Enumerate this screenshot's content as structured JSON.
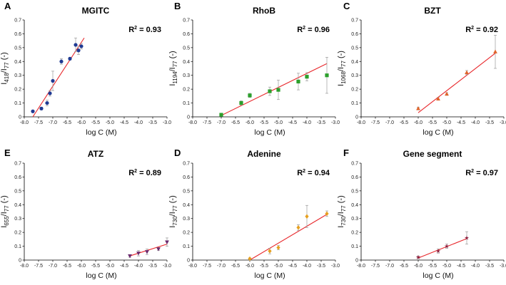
{
  "chart_data": [
    {
      "type": "scatter",
      "panel": "A",
      "title": "MGITC",
      "r2_label": "R",
      "r2_value": " = 0.93",
      "ylabel_main": "I",
      "ylabel_sub1": "418",
      "ylabel_mid": "/I",
      "ylabel_sub2": "77",
      "ylabel_end": " (-)",
      "xlabel": "log C (M)",
      "xlim": [
        -8.0,
        -3.0
      ],
      "ylim": [
        0,
        0.7
      ],
      "xticks": [
        -8.0,
        -7.5,
        -7.0,
        -6.5,
        -6.0,
        -5.5,
        -5.0,
        -4.5,
        -4.0,
        -3.5,
        -3.0
      ],
      "xtick_labels": [
        "-8.0",
        "-7.5",
        "-7.0",
        "-6.5",
        "-6.0",
        "-5.5",
        "-5.0",
        "-4.5",
        "-4.0",
        "-3.5",
        "-3.0"
      ],
      "yticks": [
        0,
        0.1,
        0.2,
        0.3,
        0.4,
        0.5,
        0.6,
        0.7
      ],
      "ytick_labels": [
        "0",
        "0.1",
        "0.2",
        "0.3",
        "0.4",
        "0.5",
        "0.6",
        "0.7"
      ],
      "marker": "circle",
      "color": "#1f3a93",
      "points": [
        {
          "x": -7.7,
          "y": 0.04,
          "err": 0.0
        },
        {
          "x": -7.4,
          "y": 0.06,
          "err": 0.01
        },
        {
          "x": -7.2,
          "y": 0.1,
          "err": 0.02
        },
        {
          "x": -7.1,
          "y": 0.17,
          "err": 0.02
        },
        {
          "x": -7.0,
          "y": 0.26,
          "err": 0.07
        },
        {
          "x": -6.7,
          "y": 0.4,
          "err": 0.02
        },
        {
          "x": -6.4,
          "y": 0.42,
          "err": 0.01
        },
        {
          "x": -6.2,
          "y": 0.52,
          "err": 0.05
        },
        {
          "x": -6.1,
          "y": 0.48,
          "err": 0.03
        },
        {
          "x": -6.0,
          "y": 0.51,
          "err": 0.02
        }
      ],
      "fit": [
        [
          -7.7,
          0.0
        ],
        [
          -5.9,
          0.57
        ]
      ]
    },
    {
      "type": "scatter",
      "panel": "B",
      "title": "RhoB",
      "r2_label": "R",
      "r2_value": " = 0.96",
      "ylabel_main": "I",
      "ylabel_sub1": "1194",
      "ylabel_mid": "/I",
      "ylabel_sub2": "77",
      "ylabel_end": " (-)",
      "xlabel": "log C (M)",
      "xlim": [
        -8.0,
        -3.0
      ],
      "ylim": [
        0,
        0.7
      ],
      "xticks": [
        -8.0,
        -7.5,
        -7.0,
        -6.5,
        -6.0,
        -5.5,
        -5.0,
        -4.5,
        -4.0,
        -3.5,
        -3.0
      ],
      "xtick_labels": [
        "-8.0",
        "-7.5",
        "-7.0",
        "-6.5",
        "-6.0",
        "-5.5",
        "-5.0",
        "-4.5",
        "-4.0",
        "-3.5",
        "-3.0"
      ],
      "yticks": [
        0,
        0.1,
        0.2,
        0.3,
        0.4,
        0.5,
        0.6,
        0.7
      ],
      "ytick_labels": [
        "0",
        "0.1",
        "0.2",
        "0.3",
        "0.4",
        "0.5",
        "0.6",
        "0.7"
      ],
      "marker": "square",
      "color": "#2ca02c",
      "points": [
        {
          "x": -7.0,
          "y": 0.015,
          "err": 0.01
        },
        {
          "x": -6.3,
          "y": 0.1,
          "err": 0.015
        },
        {
          "x": -6.0,
          "y": 0.155,
          "err": 0.015
        },
        {
          "x": -5.3,
          "y": 0.185,
          "err": 0.03
        },
        {
          "x": -5.0,
          "y": 0.195,
          "err": 0.07
        },
        {
          "x": -4.3,
          "y": 0.255,
          "err": 0.06
        },
        {
          "x": -4.0,
          "y": 0.29,
          "err": 0.03
        },
        {
          "x": -3.3,
          "y": 0.3,
          "err": 0.13
        }
      ],
      "fit": [
        [
          -7.0,
          0.01
        ],
        [
          -3.3,
          0.385
        ]
      ]
    },
    {
      "type": "scatter",
      "panel": "C",
      "title": "BZT",
      "r2_label": "R",
      "r2_value": " = 0.92",
      "ylabel_main": "I",
      "ylabel_sub1": "1068",
      "ylabel_mid": "/I",
      "ylabel_sub2": "77",
      "ylabel_end": " (-)",
      "xlabel": "log C (M)",
      "xlim": [
        -8.0,
        -3.0
      ],
      "ylim": [
        0,
        0.7
      ],
      "xticks": [
        -8.0,
        -7.5,
        -7.0,
        -6.5,
        -6.0,
        -5.5,
        -5.0,
        -4.5,
        -4.0,
        -3.5,
        -3.0
      ],
      "xtick_labels": [
        "-8.0",
        "-7.5",
        "-7.0",
        "-6.5",
        "-6.0",
        "-5.5",
        "-5.0",
        "-4.5",
        "-4.0",
        "-3.5",
        "-3.0"
      ],
      "yticks": [
        0,
        0.1,
        0.2,
        0.3,
        0.4,
        0.5,
        0.6,
        0.7
      ],
      "ytick_labels": [
        "0",
        "0.1",
        "0.2",
        "0.3",
        "0.4",
        "0.5",
        "0.6",
        "0.7"
      ],
      "marker": "triangle",
      "color": "#e0642a",
      "points": [
        {
          "x": -6.0,
          "y": 0.06,
          "err": 0.01
        },
        {
          "x": -5.3,
          "y": 0.13,
          "err": 0.01
        },
        {
          "x": -5.0,
          "y": 0.165,
          "err": 0.01
        },
        {
          "x": -4.3,
          "y": 0.32,
          "err": 0.015
        },
        {
          "x": -3.3,
          "y": 0.47,
          "err": 0.12
        }
      ],
      "fit": [
        [
          -6.0,
          0.03
        ],
        [
          -3.3,
          0.46
        ]
      ]
    },
    {
      "type": "scatter",
      "panel": "E",
      "title": "ATZ",
      "r2_label": "R",
      "r2_value": " = 0.89",
      "ylabel_main": "I",
      "ylabel_sub1": "655",
      "ylabel_mid": "/I",
      "ylabel_sub2": "77",
      "ylabel_end": " (-)",
      "xlabel": "log C (M)",
      "xlim": [
        -8.0,
        -3.0
      ],
      "ylim": [
        0,
        0.7
      ],
      "xticks": [
        -8.0,
        -7.5,
        -7.0,
        -6.5,
        -6.0,
        -5.5,
        -5.0,
        -4.5,
        -4.0,
        -3.5,
        -3.0
      ],
      "xtick_labels": [
        "-8.0",
        "-7.5",
        "-7.0",
        "-6.5",
        "-6.0",
        "-5.5",
        "-5.0",
        "-4.5",
        "-4.0",
        "-3.5",
        "-3.0"
      ],
      "yticks": [
        0,
        0.1,
        0.2,
        0.3,
        0.4,
        0.5,
        0.6,
        0.7
      ],
      "ytick_labels": [
        "0",
        "0.1",
        "0.2",
        "0.3",
        "0.4",
        "0.5",
        "0.6",
        "0.7"
      ],
      "marker": "triangle-down",
      "color": "#6b2a6e",
      "points": [
        {
          "x": -4.3,
          "y": 0.03,
          "err": 0.01
        },
        {
          "x": -4.0,
          "y": 0.05,
          "err": 0.02
        },
        {
          "x": -3.7,
          "y": 0.06,
          "err": 0.02
        },
        {
          "x": -3.3,
          "y": 0.08,
          "err": 0.01
        },
        {
          "x": -3.0,
          "y": 0.13,
          "err": 0.03
        }
      ],
      "fit": [
        [
          -4.3,
          0.03
        ],
        [
          -3.0,
          0.115
        ]
      ]
    },
    {
      "type": "scatter",
      "panel": "D",
      "title": "Adenine",
      "r2_label": "R",
      "r2_value": " = 0.94",
      "ylabel_main": "I",
      "ylabel_sub1": "730",
      "ylabel_mid": "/I",
      "ylabel_sub2": "77",
      "ylabel_end": " (-)",
      "xlabel": "log C (M)",
      "xlim": [
        -8.0,
        -3.0
      ],
      "ylim": [
        0,
        0.7
      ],
      "xticks": [
        -8.0,
        -7.5,
        -7.0,
        -6.5,
        -6.0,
        -5.5,
        -5.0,
        -4.5,
        -4.0,
        -3.5,
        -3.0
      ],
      "xtick_labels": [
        "-8.0",
        "-7.5",
        "-7.0",
        "-6.5",
        "-6.0",
        "-5.5",
        "-5.0",
        "-4.5",
        "-4.0",
        "-3.5",
        "-3.0"
      ],
      "yticks": [
        0,
        0.1,
        0.2,
        0.3,
        0.4,
        0.5,
        0.6,
        0.7
      ],
      "ytick_labels": [
        "0",
        "0.1",
        "0.2",
        "0.3",
        "0.4",
        "0.5",
        "0.6",
        "0.7"
      ],
      "marker": "diamond",
      "color": "#e6a020",
      "points": [
        {
          "x": -6.0,
          "y": 0.01,
          "err": 0.005
        },
        {
          "x": -5.3,
          "y": 0.065,
          "err": 0.02
        },
        {
          "x": -5.0,
          "y": 0.09,
          "err": 0.015
        },
        {
          "x": -4.3,
          "y": 0.235,
          "err": 0.02
        },
        {
          "x": -4.0,
          "y": 0.315,
          "err": 0.08
        },
        {
          "x": -3.3,
          "y": 0.335,
          "err": 0.02
        }
      ],
      "fit": [
        [
          -6.0,
          0.0
        ],
        [
          -3.3,
          0.33
        ]
      ]
    },
    {
      "type": "scatter",
      "panel": "F",
      "title": "Gene segment",
      "r2_label": "R",
      "r2_value": " = 0.97",
      "ylabel_main": "I",
      "ylabel_sub1": "730",
      "ylabel_mid": "/I",
      "ylabel_sub2": "77",
      "ylabel_end": " (-)",
      "xlabel": "log C (M)",
      "xlim": [
        -8.0,
        -3.0
      ],
      "ylim": [
        0,
        0.7
      ],
      "xticks": [
        -8.0,
        -7.5,
        -7.0,
        -6.5,
        -6.0,
        -5.5,
        -5.0,
        -4.5,
        -4.0,
        -3.5,
        -3.0
      ],
      "xtick_labels": [
        "-8.0",
        "-7.5",
        "-7.0",
        "-6.5",
        "-6.0",
        "-5.5",
        "-5.0",
        "-4.5",
        "-4.0",
        "-3.5",
        "-3.0"
      ],
      "yticks": [
        0,
        0.1,
        0.2,
        0.3,
        0.4,
        0.5,
        0.6,
        0.7
      ],
      "ytick_labels": [
        "0",
        "0.1",
        "0.2",
        "0.3",
        "0.4",
        "0.5",
        "0.6",
        "0.7"
      ],
      "marker": "star",
      "color": "#8b1a3a",
      "points": [
        {
          "x": -6.0,
          "y": 0.02,
          "err": 0.01
        },
        {
          "x": -5.3,
          "y": 0.065,
          "err": 0.015
        },
        {
          "x": -5.0,
          "y": 0.1,
          "err": 0.015
        },
        {
          "x": -4.3,
          "y": 0.16,
          "err": 0.045
        }
      ],
      "fit": [
        [
          -6.0,
          0.015
        ],
        [
          -4.3,
          0.155
        ]
      ]
    }
  ]
}
